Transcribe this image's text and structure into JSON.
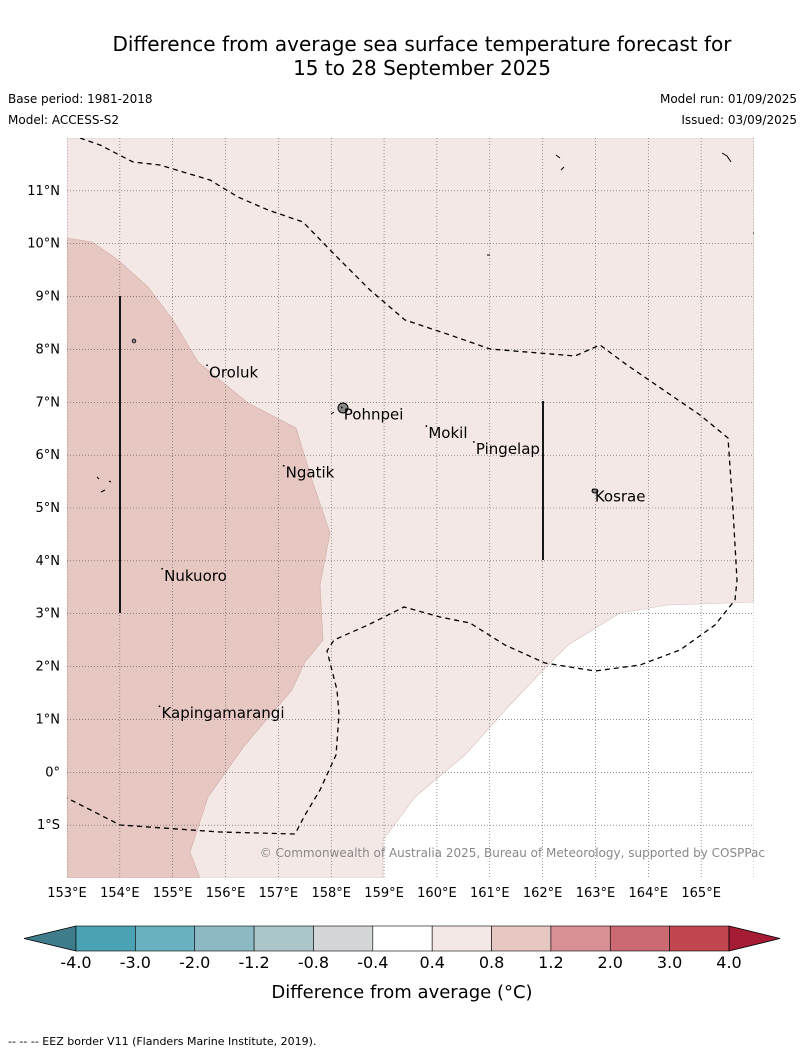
{
  "title": {
    "line1": "Difference from average sea surface temperature forecast for",
    "line2": "15 to 28 September 2025"
  },
  "meta": {
    "base_period": "Base period: 1981-2018",
    "model": "Model: ACCESS-S2",
    "model_run": "Model run: 01/09/2025",
    "issued": "Issued: 03/09/2025"
  },
  "map": {
    "lon_range": [
      153,
      166
    ],
    "lat_range": [
      -2,
      12
    ],
    "lon_labels": [
      "153°E",
      "154°E",
      "155°E",
      "156°E",
      "157°E",
      "158°E",
      "159°E",
      "160°E",
      "161°E",
      "162°E",
      "163°E",
      "164°E",
      "165°E"
    ],
    "lat_labels": [
      {
        "lat": 11,
        "label": "11°N"
      },
      {
        "lat": 10,
        "label": "10°N"
      },
      {
        "lat": 9,
        "label": "9°N"
      },
      {
        "lat": 8,
        "label": "8°N"
      },
      {
        "lat": 7,
        "label": "7°N"
      },
      {
        "lat": 6,
        "label": "6°N"
      },
      {
        "lat": 5,
        "label": "5°N"
      },
      {
        "lat": 4,
        "label": "4°N"
      },
      {
        "lat": 3,
        "label": "3°N"
      },
      {
        "lat": 2,
        "label": "2°N"
      },
      {
        "lat": 1,
        "label": "1°N"
      },
      {
        "lat": 0,
        "label": "0°"
      },
      {
        "lat": -1,
        "label": "1°S"
      }
    ],
    "islands": [
      {
        "name": "Oroluk",
        "lon": 155.65,
        "lat": 7.7
      },
      {
        "name": "Pohnpei",
        "lon": 158.2,
        "lat": 6.9
      },
      {
        "name": "Mokil",
        "lon": 159.8,
        "lat": 6.55
      },
      {
        "name": "Pingelap",
        "lon": 160.7,
        "lat": 6.25
      },
      {
        "name": "Ngatik",
        "lon": 157.1,
        "lat": 5.8
      },
      {
        "name": "Kosrae",
        "lon": 162.95,
        "lat": 5.35
      },
      {
        "name": "Nukuoro",
        "lon": 154.8,
        "lat": 3.85
      },
      {
        "name": "Kapingamarangi",
        "lon": 154.75,
        "lat": 1.25
      }
    ],
    "copyright": "© Commonwealth of Australia 2025, Bureau of Meteorology, supported by COSPPac",
    "colors": {
      "band_0_8_1_2": "#e7c7c2",
      "band_0_4_0_8": "#f4e8e6",
      "band_neutral": "#ffffff",
      "eez_line": "#000000"
    }
  },
  "colorbar": {
    "ticks": [
      "-4.0",
      "-3.0",
      "-2.0",
      "-1.2",
      "-0.8",
      "-0.4",
      "0.4",
      "0.8",
      "1.2",
      "2.0",
      "3.0",
      "4.0"
    ],
    "colors": [
      "#3f7d8c",
      "#4aa3b4",
      "#6ab1c0",
      "#8db9c4",
      "#abc6cb",
      "#d3d7d7",
      "#ffffff",
      "#f4e8e6",
      "#e7c7c2",
      "#d88f95",
      "#cc6a73",
      "#c0464f",
      "#a51c34"
    ],
    "label": "Difference from average (°C)"
  },
  "footnote": "--  --  -- EEZ border V11 (Flanders Marine Institute, 2019)."
}
